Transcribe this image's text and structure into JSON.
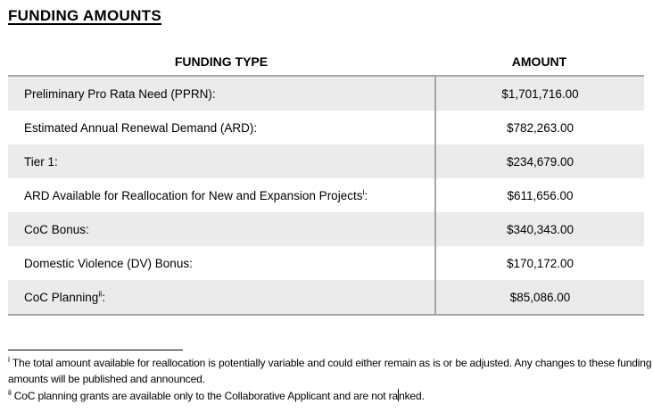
{
  "page": {
    "title": "FUNDING AMOUNTS"
  },
  "table": {
    "columns": [
      "FUNDING TYPE",
      "AMOUNT"
    ],
    "rows": [
      {
        "label": "Preliminary Pro Rata Need (PPRN)",
        "sup": "",
        "suffix": ":",
        "amount": "$1,701,716.00"
      },
      {
        "label": "Estimated Annual Renewal Demand (ARD)",
        "sup": "",
        "suffix": ":",
        "amount": "$782,263.00"
      },
      {
        "label": "Tier 1",
        "sup": "",
        "suffix": ":",
        "amount": "$234,679.00"
      },
      {
        "label": "ARD Available for Reallocation for New and Expansion Projects",
        "sup": "i",
        "suffix": ":",
        "amount": "$611,656.00"
      },
      {
        "label": "CoC Bonus",
        "sup": "",
        "suffix": ":",
        "amount": "$340,343.00"
      },
      {
        "label": "Domestic Violence (DV) Bonus",
        "sup": "",
        "suffix": ":",
        "amount": "$170,172.00"
      },
      {
        "label": "CoC Planning",
        "sup": "ii",
        "suffix": ":",
        "amount": "$85,086.00"
      }
    ]
  },
  "footnotes": [
    {
      "marker": "i",
      "text": "The total amount available for reallocation is potentially variable and could either remain as is or be adjusted. Any changes to these funding amounts will be published and announced."
    },
    {
      "marker": "ii",
      "text_before_cursor": "CoC planning grants are available only to the Collaborative Applicant and are not ra",
      "text_after_cursor": "nked."
    }
  ],
  "colors": {
    "row_shading": "#ebebeb",
    "table_border": "#a6a6a6",
    "text": "#000000",
    "background": "#ffffff"
  }
}
